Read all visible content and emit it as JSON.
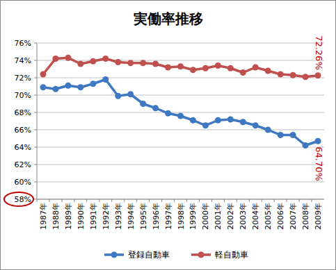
{
  "chart_data": {
    "type": "line",
    "title": "実働率推移",
    "categories": [
      "1987年",
      "1988年",
      "1989年",
      "1990年",
      "1991年",
      "1992年",
      "1993年",
      "1994年",
      "1995年",
      "1996年",
      "1997年",
      "1998年",
      "1999年",
      "2000年",
      "2001年",
      "2002年",
      "2003年",
      "2004年",
      "2005年",
      "2006年",
      "2007年",
      "2008年",
      "2009年"
    ],
    "series": [
      {
        "name": "登録自動車",
        "color": "#3f78c2",
        "marker": "circle",
        "values": [
          70.9,
          70.7,
          71.1,
          70.9,
          71.3,
          71.8,
          69.9,
          70.1,
          69.0,
          68.5,
          67.9,
          67.6,
          67.1,
          66.5,
          67.1,
          67.2,
          66.9,
          66.5,
          66.0,
          65.4,
          65.4,
          64.2,
          64.7
        ],
        "value_labels": [
          null,
          null,
          null,
          null,
          null,
          null,
          null,
          null,
          null,
          null,
          null,
          null,
          null,
          null,
          null,
          null,
          null,
          null,
          null,
          null,
          null,
          null,
          "64.70%"
        ]
      },
      {
        "name": "軽自動車",
        "color": "#c0504d",
        "marker": "circle",
        "values": [
          72.4,
          74.2,
          74.3,
          73.6,
          73.9,
          74.2,
          73.8,
          73.7,
          73.7,
          73.6,
          73.2,
          73.3,
          72.9,
          73.1,
          73.4,
          73.1,
          72.6,
          73.2,
          72.8,
          72.4,
          72.3,
          72.1,
          72.26
        ],
        "value_labels": [
          null,
          null,
          null,
          null,
          null,
          null,
          null,
          null,
          null,
          null,
          null,
          null,
          null,
          null,
          null,
          null,
          null,
          null,
          null,
          null,
          null,
          null,
          "72.26%"
        ]
      }
    ],
    "ylim": [
      58,
      76
    ],
    "yticks": [
      {
        "value": 58,
        "label": "58%"
      },
      {
        "value": 60,
        "label": "60%"
      },
      {
        "value": 62,
        "label": "62%"
      },
      {
        "value": 64,
        "label": "64%"
      },
      {
        "value": 66,
        "label": "66%"
      },
      {
        "value": 68,
        "label": "68%"
      },
      {
        "value": 70,
        "label": "70%"
      },
      {
        "value": 72,
        "label": "72%"
      },
      {
        "value": 74,
        "label": "74%"
      },
      {
        "value": 76,
        "label": "76%"
      }
    ],
    "grid": true,
    "legend": "bottom",
    "data_labels": true
  }
}
